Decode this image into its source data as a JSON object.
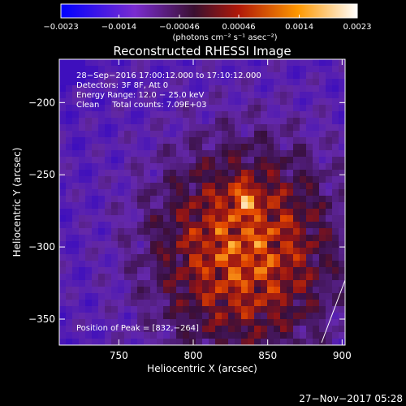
{
  "chart_data": {
    "type": "heatmap",
    "title": "Reconstructed RHESSI Image",
    "xlabel": "Heliocentric X (arcsec)",
    "ylabel": "Heliocentric Y (arcsec)",
    "xlim": [
      710,
      902
    ],
    "ylim": [
      -368,
      -170
    ],
    "x_ticks": [
      750,
      800,
      850,
      900
    ],
    "x_tick_labels": [
      "750",
      "800",
      "850",
      "900"
    ],
    "y_ticks": [
      -200,
      -250,
      -300,
      -350
    ],
    "y_tick_labels": [
      "−200",
      "−250",
      "−300",
      "−350"
    ],
    "colorbar": {
      "min": -0.0023,
      "max": 0.0023,
      "ticks": [
        -0.0023,
        -0.0014,
        -0.00046,
        0.00046,
        0.0014,
        0.0023
      ],
      "tick_labels": [
        "−0.0023",
        "−0.0014",
        "−0.00046",
        "0.00046",
        "0.0014",
        "0.0023"
      ],
      "unit_label": "(photons cm⁻² s⁻¹ asec⁻²)"
    },
    "info_lines": [
      "28−Sep−2016 17:00:12.000 to 17:10:12.000",
      "Detectors: 3F 8F, Att 0",
      "Energy Range: 12.0 − 25.0 keV",
      "Clean     Total counts: 7.09E+03"
    ],
    "peak_label": "Position of Peak = [832,−264]",
    "peak": [
      832,
      -264
    ],
    "timestamp": "27−Nov−2017 05:28"
  }
}
